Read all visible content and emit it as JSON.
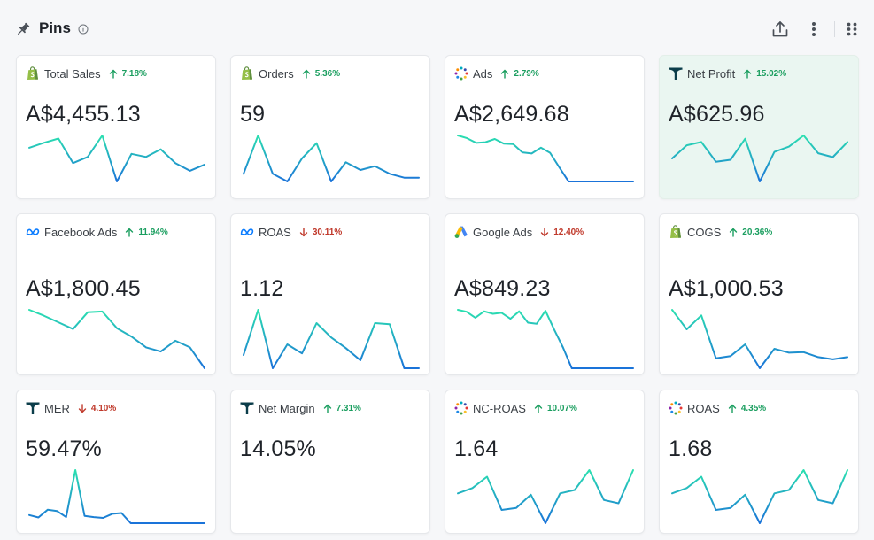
{
  "header": {
    "title": "Pins",
    "icons": {
      "pin": "pin-icon",
      "info": "info-icon",
      "export": "export-icon",
      "more": "more-vertical-icon",
      "grip": "drag-grip-icon"
    }
  },
  "colors": {
    "up": "#1a9e5f",
    "down": "#c0392b",
    "spark_start": "#2be0b0",
    "spark_end": "#1a73d9",
    "highlight_bg": "#eaf6f1"
  },
  "cards": [
    {
      "id": "total-sales",
      "title": "Total Sales",
      "source": "shopify",
      "delta": "7.18%",
      "direction": "up",
      "value": "A$4,455.13",
      "highlighted": false,
      "trend": [
        13,
        14.6,
        16,
        8,
        10,
        17,
        2,
        11,
        10,
        12.5,
        8,
        5.5,
        7.5
      ]
    },
    {
      "id": "orders",
      "title": "Orders",
      "source": "shopify",
      "delta": "5.36%",
      "direction": "up",
      "value": "59",
      "highlighted": false,
      "trend": [
        3,
        8,
        3,
        2,
        5,
        7,
        2,
        4.5,
        3.5,
        4,
        3,
        2.5,
        2.5
      ]
    },
    {
      "id": "ads",
      "title": "Ads",
      "source": "triple",
      "delta": "2.79%",
      "direction": "up",
      "value": "A$2,649.68",
      "highlighted": false,
      "trend": [
        12.5,
        11.8,
        10.6,
        10.8,
        11.6,
        10.4,
        10.3,
        8.2,
        7.9,
        9.4,
        8.1,
        4.4,
        0.8,
        0.8,
        0.8,
        0.8,
        0.8,
        0.8,
        0.8,
        0.8
      ]
    },
    {
      "id": "net-profit",
      "title": "Net Profit",
      "source": "tw",
      "delta": "15.02%",
      "direction": "up",
      "value": "A$625.96",
      "highlighted": true,
      "trend": [
        6,
        8,
        8.5,
        5.5,
        5.8,
        9,
        2.5,
        7,
        7.8,
        9.5,
        6.8,
        6.2,
        8.5
      ]
    },
    {
      "id": "facebook-ads",
      "title": "Facebook Ads",
      "source": "meta",
      "delta": "11.94%",
      "direction": "up",
      "value": "A$1,800.45",
      "highlighted": false,
      "trend": [
        10.5,
        9.8,
        9,
        8.2,
        10.2,
        10.3,
        8.3,
        7.3,
        6,
        5.5,
        6.8,
        6,
        3.5
      ]
    },
    {
      "id": "roas-meta",
      "title": "ROAS",
      "source": "meta",
      "delta": "30.11%",
      "direction": "down",
      "value": "1.12",
      "highlighted": false,
      "trend": [
        5.5,
        14,
        3,
        7.5,
        5.8,
        11.5,
        8.8,
        6.8,
        4.5,
        11.5,
        11.3,
        3,
        3
      ]
    },
    {
      "id": "google-ads",
      "title": "Google Ads",
      "source": "google",
      "delta": "12.40%",
      "direction": "down",
      "value": "A$849.23",
      "highlighted": false,
      "trend": [
        12.8,
        12.4,
        11.2,
        12.5,
        12,
        12.2,
        11,
        12.5,
        10.2,
        10,
        12.6,
        8.8,
        5.2,
        1,
        1,
        1,
        1,
        1,
        1,
        1,
        1
      ]
    },
    {
      "id": "cogs",
      "title": "COGS",
      "source": "shopify",
      "delta": "20.36%",
      "direction": "up",
      "value": "A$1,000.53",
      "highlighted": false,
      "trend": [
        14,
        10.5,
        13,
        5.3,
        5.7,
        7.8,
        3.5,
        7,
        6.3,
        6.4,
        5.5,
        5.1,
        5.5
      ]
    },
    {
      "id": "mer",
      "title": "MER",
      "source": "tw",
      "delta": "4.10%",
      "direction": "down",
      "value": "59.47%",
      "highlighted": false,
      "trend": [
        3,
        2.4,
        4.3,
        4,
        2.5,
        14,
        2.8,
        2.5,
        2.3,
        3.3,
        3.5,
        1,
        1,
        1,
        1,
        1,
        1,
        1,
        1,
        1
      ]
    },
    {
      "id": "net-margin",
      "title": "Net Margin",
      "source": "tw",
      "delta": "7.31%",
      "direction": "up",
      "value": "14.05%",
      "highlighted": false,
      "trend": []
    },
    {
      "id": "nc-roas",
      "title": "NC-ROAS",
      "source": "triple",
      "delta": "10.07%",
      "direction": "up",
      "value": "1.64",
      "highlighted": false,
      "trend": [
        6,
        6.8,
        8.5,
        3.5,
        3.8,
        5.8,
        1.5,
        6,
        6.5,
        9.5,
        5,
        4.5,
        9.5
      ]
    },
    {
      "id": "roas-triple",
      "title": "ROAS",
      "source": "triple",
      "delta": "4.35%",
      "direction": "up",
      "value": "1.68",
      "highlighted": false,
      "trend": [
        6,
        6.8,
        8.5,
        3.5,
        3.8,
        5.8,
        1.5,
        6,
        6.5,
        9.5,
        5,
        4.5,
        9.5
      ]
    }
  ]
}
